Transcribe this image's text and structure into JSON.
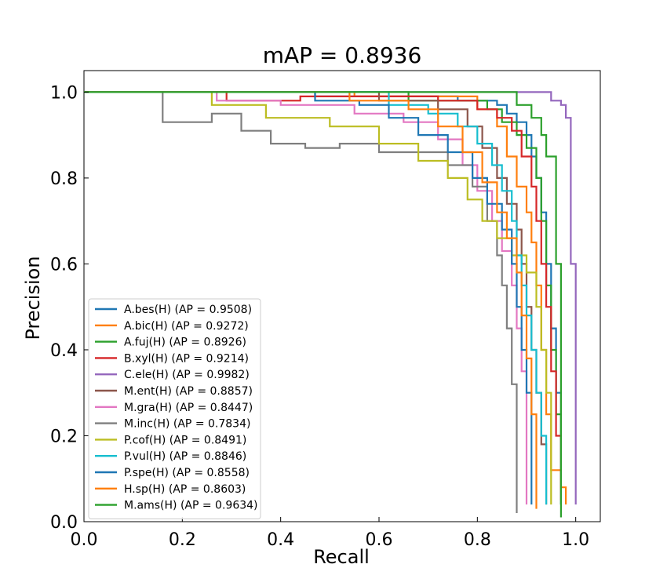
{
  "chart_data": {
    "type": "line",
    "title": "mAP = 0.8936",
    "xlabel": "Recall",
    "ylabel": "Precision",
    "xlim": [
      0.0,
      1.05
    ],
    "ylim": [
      0.0,
      1.05
    ],
    "xticks": [
      "0.0",
      "0.2",
      "0.4",
      "0.6",
      "0.8",
      "1.0"
    ],
    "yticks": [
      "0.0",
      "0.2",
      "0.4",
      "0.6",
      "0.8",
      "1.0"
    ],
    "grid": false,
    "legend_position": "lower-left",
    "series": [
      {
        "name": "A.bes(H) (AP = 0.9508)",
        "color": "#1f77b4",
        "points": [
          [
            0.0,
            1.0
          ],
          [
            0.47,
            1.0
          ],
          [
            0.47,
            0.99
          ],
          [
            0.76,
            0.99
          ],
          [
            0.76,
            0.98
          ],
          [
            0.84,
            0.97
          ],
          [
            0.86,
            0.95
          ],
          [
            0.88,
            0.93
          ],
          [
            0.9,
            0.9
          ],
          [
            0.91,
            0.85
          ],
          [
            0.92,
            0.8
          ],
          [
            0.93,
            0.72
          ],
          [
            0.94,
            0.6
          ],
          [
            0.95,
            0.45
          ],
          [
            0.96,
            0.3
          ],
          [
            0.97,
            0.15
          ],
          [
            0.97,
            0.04
          ]
        ]
      },
      {
        "name": "A.bic(H) (AP = 0.9272)",
        "color": "#ff7f0e",
        "points": [
          [
            0.0,
            1.0
          ],
          [
            0.55,
            1.0
          ],
          [
            0.55,
            0.99
          ],
          [
            0.8,
            0.99
          ],
          [
            0.8,
            0.96
          ],
          [
            0.84,
            0.92
          ],
          [
            0.86,
            0.85
          ],
          [
            0.88,
            0.78
          ],
          [
            0.9,
            0.72
          ],
          [
            0.91,
            0.65
          ],
          [
            0.92,
            0.55
          ],
          [
            0.93,
            0.4
          ],
          [
            0.94,
            0.25
          ],
          [
            0.95,
            0.12
          ],
          [
            0.97,
            0.08
          ],
          [
            0.98,
            0.04
          ]
        ]
      },
      {
        "name": "A.fuj(H) (AP = 0.8926)",
        "color": "#2ca02c",
        "points": [
          [
            0.0,
            1.0
          ],
          [
            0.66,
            1.0
          ],
          [
            0.66,
            0.98
          ],
          [
            0.78,
            0.98
          ],
          [
            0.82,
            0.96
          ],
          [
            0.85,
            0.93
          ],
          [
            0.88,
            0.9
          ],
          [
            0.9,
            0.87
          ],
          [
            0.92,
            0.8
          ],
          [
            0.93,
            0.7
          ],
          [
            0.94,
            0.55
          ],
          [
            0.95,
            0.4
          ],
          [
            0.96,
            0.25
          ],
          [
            0.97,
            0.1
          ],
          [
            0.97,
            0.04
          ]
        ]
      },
      {
        "name": "B.xyl(H) (AP = 0.9214)",
        "color": "#d62728",
        "points": [
          [
            0.0,
            1.0
          ],
          [
            0.29,
            1.0
          ],
          [
            0.29,
            0.98
          ],
          [
            0.44,
            0.99
          ],
          [
            0.6,
            0.99
          ],
          [
            0.72,
            0.98
          ],
          [
            0.8,
            0.96
          ],
          [
            0.84,
            0.94
          ],
          [
            0.87,
            0.91
          ],
          [
            0.89,
            0.85
          ],
          [
            0.91,
            0.78
          ],
          [
            0.92,
            0.7
          ],
          [
            0.93,
            0.6
          ],
          [
            0.94,
            0.5
          ],
          [
            0.95,
            0.35
          ],
          [
            0.96,
            0.2
          ],
          [
            0.97,
            0.05
          ]
        ]
      },
      {
        "name": "C.ele(H) (AP = 0.9982)",
        "color": "#9467bd",
        "points": [
          [
            0.0,
            1.0
          ],
          [
            0.95,
            1.0
          ],
          [
            0.95,
            0.98
          ],
          [
            0.97,
            0.97
          ],
          [
            0.98,
            0.94
          ],
          [
            0.99,
            0.9
          ],
          [
            0.99,
            0.6
          ],
          [
            1.0,
            0.3
          ],
          [
            1.0,
            0.04
          ]
        ]
      },
      {
        "name": "M.ent(H) (AP = 0.8857)",
        "color": "#8c564b",
        "points": [
          [
            0.0,
            1.0
          ],
          [
            0.6,
            1.0
          ],
          [
            0.6,
            0.98
          ],
          [
            0.72,
            0.96
          ],
          [
            0.78,
            0.92
          ],
          [
            0.81,
            0.87
          ],
          [
            0.84,
            0.8
          ],
          [
            0.86,
            0.74
          ],
          [
            0.88,
            0.68
          ],
          [
            0.89,
            0.6
          ],
          [
            0.9,
            0.5
          ],
          [
            0.91,
            0.4
          ],
          [
            0.92,
            0.3
          ],
          [
            0.93,
            0.18
          ],
          [
            0.94,
            0.1
          ],
          [
            0.94,
            0.04
          ]
        ]
      },
      {
        "name": "M.gra(H) (AP = 0.8447)",
        "color": "#e377c2",
        "points": [
          [
            0.0,
            1.0
          ],
          [
            0.27,
            1.0
          ],
          [
            0.27,
            0.98
          ],
          [
            0.4,
            0.97
          ],
          [
            0.55,
            0.95
          ],
          [
            0.65,
            0.93
          ],
          [
            0.72,
            0.89
          ],
          [
            0.77,
            0.83
          ],
          [
            0.8,
            0.77
          ],
          [
            0.83,
            0.7
          ],
          [
            0.85,
            0.63
          ],
          [
            0.87,
            0.55
          ],
          [
            0.88,
            0.45
          ],
          [
            0.89,
            0.35
          ],
          [
            0.9,
            0.2
          ],
          [
            0.9,
            0.04
          ]
        ]
      },
      {
        "name": "M.inc(H) (AP = 0.7834)",
        "color": "#7f7f7f",
        "points": [
          [
            0.0,
            1.0
          ],
          [
            0.16,
            1.0
          ],
          [
            0.16,
            0.93
          ],
          [
            0.26,
            0.95
          ],
          [
            0.32,
            0.91
          ],
          [
            0.38,
            0.88
          ],
          [
            0.45,
            0.87
          ],
          [
            0.52,
            0.88
          ],
          [
            0.6,
            0.86
          ],
          [
            0.68,
            0.86
          ],
          [
            0.74,
            0.83
          ],
          [
            0.79,
            0.78
          ],
          [
            0.82,
            0.7
          ],
          [
            0.84,
            0.62
          ],
          [
            0.85,
            0.55
          ],
          [
            0.86,
            0.45
          ],
          [
            0.87,
            0.32
          ],
          [
            0.88,
            0.2
          ],
          [
            0.88,
            0.02
          ]
        ]
      },
      {
        "name": "P.cof(H) (AP = 0.8491)",
        "color": "#bcbd22",
        "points": [
          [
            0.0,
            1.0
          ],
          [
            0.26,
            1.0
          ],
          [
            0.26,
            0.97
          ],
          [
            0.37,
            0.94
          ],
          [
            0.5,
            0.92
          ],
          [
            0.6,
            0.88
          ],
          [
            0.68,
            0.84
          ],
          [
            0.74,
            0.8
          ],
          [
            0.78,
            0.75
          ],
          [
            0.81,
            0.7
          ],
          [
            0.84,
            0.66
          ],
          [
            0.87,
            0.62
          ],
          [
            0.9,
            0.58
          ],
          [
            0.92,
            0.5
          ],
          [
            0.93,
            0.4
          ],
          [
            0.94,
            0.3
          ],
          [
            0.95,
            0.15
          ],
          [
            0.95,
            0.04
          ]
        ]
      },
      {
        "name": "P.vul(H) (AP = 0.8846)",
        "color": "#17becf",
        "points": [
          [
            0.0,
            1.0
          ],
          [
            0.62,
            1.0
          ],
          [
            0.62,
            0.97
          ],
          [
            0.7,
            0.95
          ],
          [
            0.76,
            0.92
          ],
          [
            0.8,
            0.88
          ],
          [
            0.83,
            0.83
          ],
          [
            0.85,
            0.77
          ],
          [
            0.87,
            0.7
          ],
          [
            0.88,
            0.62
          ],
          [
            0.89,
            0.55
          ],
          [
            0.9,
            0.48
          ],
          [
            0.91,
            0.4
          ],
          [
            0.92,
            0.3
          ],
          [
            0.93,
            0.2
          ],
          [
            0.94,
            0.08
          ],
          [
            0.94,
            0.04
          ]
        ]
      },
      {
        "name": "P.spe(H) (AP = 0.8558)",
        "color": "#1f77b4",
        "points": [
          [
            0.0,
            1.0
          ],
          [
            0.47,
            1.0
          ],
          [
            0.47,
            0.98
          ],
          [
            0.56,
            0.97
          ],
          [
            0.62,
            0.94
          ],
          [
            0.68,
            0.9
          ],
          [
            0.74,
            0.86
          ],
          [
            0.79,
            0.8
          ],
          [
            0.82,
            0.74
          ],
          [
            0.85,
            0.68
          ],
          [
            0.87,
            0.6
          ],
          [
            0.88,
            0.5
          ],
          [
            0.89,
            0.4
          ],
          [
            0.9,
            0.3
          ],
          [
            0.91,
            0.15
          ],
          [
            0.91,
            0.04
          ]
        ]
      },
      {
        "name": "H.sp(H) (AP = 0.8603)",
        "color": "#ff7f0e",
        "points": [
          [
            0.0,
            1.0
          ],
          [
            0.54,
            1.0
          ],
          [
            0.54,
            0.98
          ],
          [
            0.66,
            0.96
          ],
          [
            0.72,
            0.92
          ],
          [
            0.77,
            0.86
          ],
          [
            0.81,
            0.79
          ],
          [
            0.84,
            0.72
          ],
          [
            0.86,
            0.66
          ],
          [
            0.88,
            0.58
          ],
          [
            0.89,
            0.48
          ],
          [
            0.9,
            0.38
          ],
          [
            0.91,
            0.25
          ],
          [
            0.92,
            0.1
          ],
          [
            0.92,
            0.03
          ]
        ]
      },
      {
        "name": "M.ams(H) (AP = 0.9634)",
        "color": "#2ca02c",
        "points": [
          [
            0.0,
            1.0
          ],
          [
            0.88,
            1.0
          ],
          [
            0.88,
            0.97
          ],
          [
            0.91,
            0.94
          ],
          [
            0.93,
            0.9
          ],
          [
            0.94,
            0.85
          ],
          [
            0.96,
            0.85
          ],
          [
            0.96,
            0.6
          ],
          [
            0.97,
            0.3
          ],
          [
            0.97,
            0.01
          ]
        ]
      }
    ]
  }
}
